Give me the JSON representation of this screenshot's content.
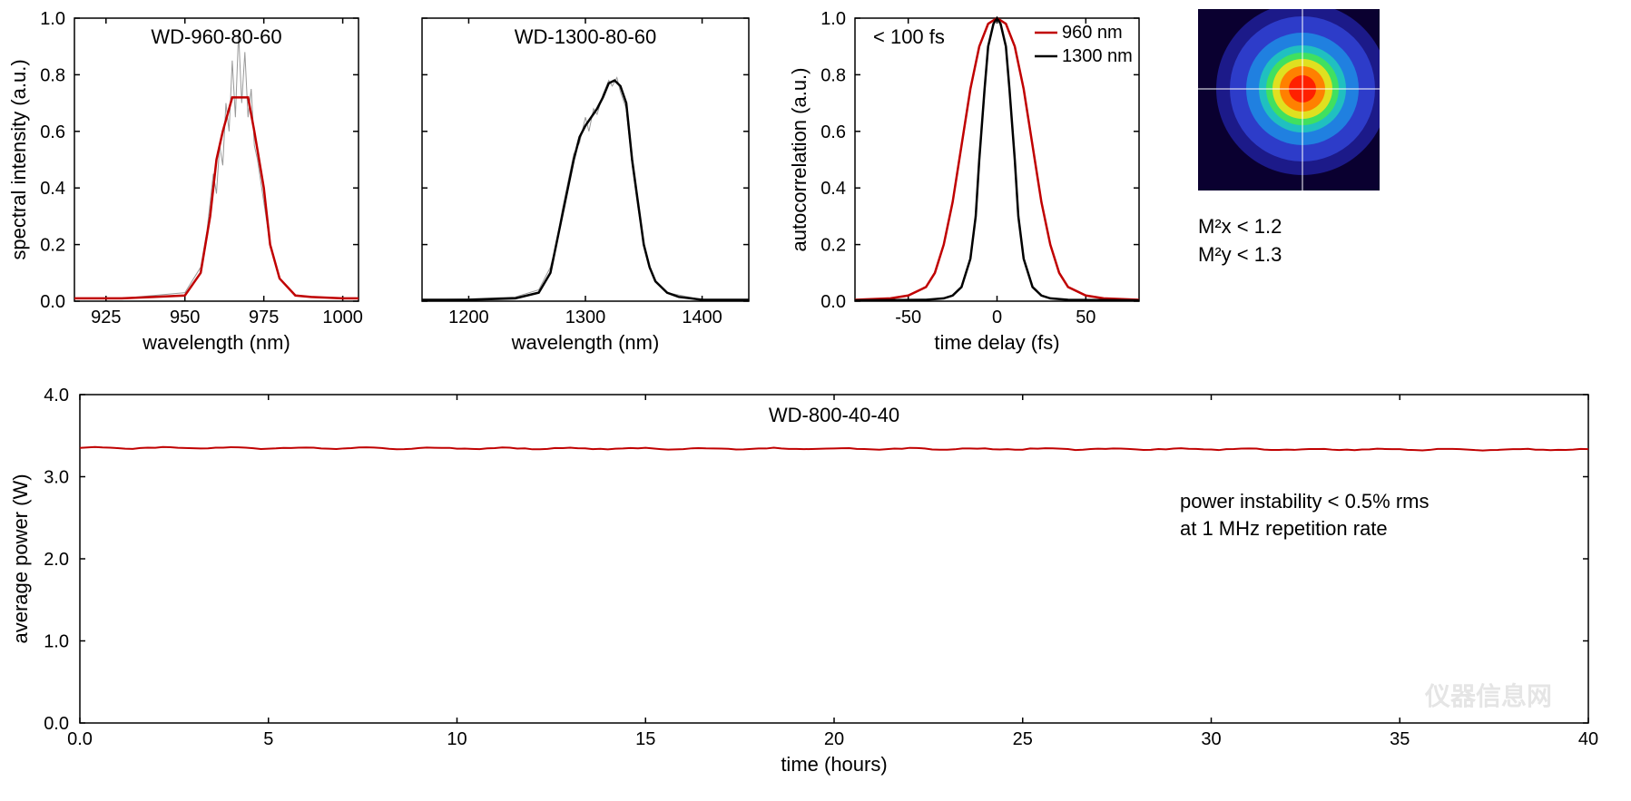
{
  "chart1": {
    "type": "line",
    "title": "WD-960-80-60",
    "xlabel": "wavelength (nm)",
    "ylabel": "spectral intensity (a.u.)",
    "xlim": [
      915,
      1005
    ],
    "ylim": [
      0,
      1.0
    ],
    "xticks": [
      925,
      950,
      975,
      1000
    ],
    "yticks": [
      0.0,
      0.2,
      0.4,
      0.6,
      0.8,
      1.0
    ],
    "line_color": "#c00000",
    "raw_color": "#999999",
    "line_width": 2.5,
    "background": "#ffffff",
    "border_color": "#000000",
    "smooth_data": [
      [
        915,
        0.01
      ],
      [
        930,
        0.01
      ],
      [
        940,
        0.015
      ],
      [
        950,
        0.02
      ],
      [
        955,
        0.1
      ],
      [
        958,
        0.3
      ],
      [
        960,
        0.5
      ],
      [
        962,
        0.6
      ],
      [
        965,
        0.72
      ],
      [
        967,
        0.72
      ],
      [
        970,
        0.72
      ],
      [
        972,
        0.6
      ],
      [
        975,
        0.4
      ],
      [
        977,
        0.2
      ],
      [
        980,
        0.08
      ],
      [
        985,
        0.02
      ],
      [
        990,
        0.015
      ],
      [
        1000,
        0.01
      ],
      [
        1005,
        0.01
      ]
    ],
    "raw_data": [
      [
        915,
        0.01
      ],
      [
        930,
        0.01
      ],
      [
        940,
        0.02
      ],
      [
        950,
        0.03
      ],
      [
        955,
        0.12
      ],
      [
        957,
        0.25
      ],
      [
        959,
        0.45
      ],
      [
        960,
        0.38
      ],
      [
        961,
        0.55
      ],
      [
        962,
        0.48
      ],
      [
        963,
        0.7
      ],
      [
        964,
        0.6
      ],
      [
        965,
        0.85
      ],
      [
        966,
        0.65
      ],
      [
        967,
        0.95
      ],
      [
        968,
        0.7
      ],
      [
        969,
        0.88
      ],
      [
        970,
        0.65
      ],
      [
        971,
        0.75
      ],
      [
        972,
        0.55
      ],
      [
        973,
        0.5
      ],
      [
        975,
        0.35
      ],
      [
        977,
        0.2
      ],
      [
        980,
        0.08
      ],
      [
        985,
        0.02
      ],
      [
        1000,
        0.01
      ]
    ]
  },
  "chart2": {
    "type": "line",
    "title": "WD-1300-80-60",
    "xlabel": "wavelength (nm)",
    "ylim": [
      0,
      1.0
    ],
    "xlim": [
      1160,
      1440
    ],
    "xticks": [
      1200,
      1300,
      1400
    ],
    "yticks": [
      0.0,
      0.2,
      0.4,
      0.6,
      0.8,
      1.0
    ],
    "line_color": "#000000",
    "raw_color": "#999999",
    "line_width": 2.5,
    "background": "#ffffff",
    "border_color": "#000000",
    "smooth_data": [
      [
        1160,
        0.005
      ],
      [
        1200,
        0.005
      ],
      [
        1240,
        0.01
      ],
      [
        1260,
        0.03
      ],
      [
        1270,
        0.1
      ],
      [
        1280,
        0.3
      ],
      [
        1290,
        0.5
      ],
      [
        1295,
        0.58
      ],
      [
        1300,
        0.62
      ],
      [
        1305,
        0.65
      ],
      [
        1310,
        0.68
      ],
      [
        1315,
        0.72
      ],
      [
        1320,
        0.77
      ],
      [
        1325,
        0.78
      ],
      [
        1330,
        0.76
      ],
      [
        1335,
        0.7
      ],
      [
        1340,
        0.5
      ],
      [
        1345,
        0.35
      ],
      [
        1350,
        0.2
      ],
      [
        1355,
        0.12
      ],
      [
        1360,
        0.07
      ],
      [
        1370,
        0.03
      ],
      [
        1380,
        0.015
      ],
      [
        1400,
        0.005
      ],
      [
        1440,
        0.005
      ]
    ],
    "raw_data": [
      [
        1160,
        0.005
      ],
      [
        1200,
        0.008
      ],
      [
        1240,
        0.015
      ],
      [
        1260,
        0.04
      ],
      [
        1270,
        0.12
      ],
      [
        1275,
        0.2
      ],
      [
        1280,
        0.32
      ],
      [
        1285,
        0.42
      ],
      [
        1290,
        0.52
      ],
      [
        1295,
        0.56
      ],
      [
        1300,
        0.65
      ],
      [
        1303,
        0.6
      ],
      [
        1307,
        0.68
      ],
      [
        1310,
        0.66
      ],
      [
        1315,
        0.73
      ],
      [
        1320,
        0.78
      ],
      [
        1323,
        0.76
      ],
      [
        1327,
        0.79
      ],
      [
        1330,
        0.74
      ],
      [
        1335,
        0.68
      ],
      [
        1340,
        0.48
      ],
      [
        1345,
        0.33
      ],
      [
        1350,
        0.2
      ],
      [
        1355,
        0.12
      ],
      [
        1360,
        0.07
      ],
      [
        1370,
        0.03
      ],
      [
        1400,
        0.005
      ]
    ]
  },
  "chart3": {
    "type": "line",
    "title_annotation": "< 100 fs",
    "xlabel": "time delay (fs)",
    "ylabel": "autocorrelation (a.u.)",
    "xlim": [
      -80,
      80
    ],
    "ylim": [
      0,
      1.0
    ],
    "xticks": [
      -50,
      0,
      50
    ],
    "yticks": [
      0.0,
      0.2,
      0.4,
      0.6,
      0.8,
      1.0
    ],
    "legend": [
      {
        "label": "960 nm",
        "color": "#c00000"
      },
      {
        "label": "1300 nm",
        "color": "#000000"
      }
    ],
    "line_width": 2.5,
    "background": "#ffffff",
    "border_color": "#000000",
    "series1": {
      "color": "#c00000",
      "data": [
        [
          -80,
          0.005
        ],
        [
          -60,
          0.01
        ],
        [
          -50,
          0.02
        ],
        [
          -40,
          0.05
        ],
        [
          -35,
          0.1
        ],
        [
          -30,
          0.2
        ],
        [
          -25,
          0.35
        ],
        [
          -20,
          0.55
        ],
        [
          -15,
          0.75
        ],
        [
          -10,
          0.9
        ],
        [
          -5,
          0.98
        ],
        [
          0,
          1.0
        ],
        [
          5,
          0.98
        ],
        [
          10,
          0.9
        ],
        [
          15,
          0.75
        ],
        [
          20,
          0.55
        ],
        [
          25,
          0.35
        ],
        [
          30,
          0.2
        ],
        [
          35,
          0.1
        ],
        [
          40,
          0.05
        ],
        [
          50,
          0.02
        ],
        [
          60,
          0.01
        ],
        [
          80,
          0.005
        ]
      ]
    },
    "series2": {
      "color": "#000000",
      "data": [
        [
          -80,
          0.003
        ],
        [
          -40,
          0.005
        ],
        [
          -30,
          0.01
        ],
        [
          -25,
          0.02
        ],
        [
          -20,
          0.05
        ],
        [
          -15,
          0.15
        ],
        [
          -12,
          0.3
        ],
        [
          -10,
          0.5
        ],
        [
          -7,
          0.75
        ],
        [
          -5,
          0.9
        ],
        [
          -2,
          0.98
        ],
        [
          0,
          1.0
        ],
        [
          2,
          0.98
        ],
        [
          5,
          0.9
        ],
        [
          7,
          0.75
        ],
        [
          10,
          0.5
        ],
        [
          12,
          0.3
        ],
        [
          15,
          0.15
        ],
        [
          20,
          0.05
        ],
        [
          25,
          0.02
        ],
        [
          30,
          0.01
        ],
        [
          40,
          0.005
        ],
        [
          80,
          0.003
        ]
      ]
    }
  },
  "beam": {
    "m2x_label": "M²x < 1.2",
    "m2y_label": "M²y < 1.3",
    "colors": {
      "outer": "#0a0030",
      "ring1": "#2020a0",
      "ring2": "#3040d0",
      "ring3": "#2080e0",
      "ring4": "#20c0c0",
      "ring5": "#40e060",
      "ring6": "#e0e020",
      "ring7": "#ff8000",
      "center": "#ff2000",
      "crosshair": "#ffffff"
    }
  },
  "chart4": {
    "type": "line",
    "title": "WD-800-40-40",
    "xlabel": "time (hours)",
    "ylabel": "average power (W)",
    "xlim": [
      0.0,
      40
    ],
    "ylim": [
      0.0,
      4.0
    ],
    "xticks": [
      0.0,
      5,
      10,
      15,
      20,
      25,
      30,
      35,
      40
    ],
    "yticks": [
      0.0,
      1.0,
      2.0,
      3.0,
      4.0
    ],
    "line_color": "#c00000",
    "line_width": 2,
    "background": "#ffffff",
    "border_color": "#000000",
    "annotation_line1": "power instability < 0.5% rms",
    "annotation_line2": "at 1 MHz repetition rate",
    "watermark": "仪器信息网",
    "data_y": 3.35,
    "data": [
      [
        0,
        3.35
      ],
      [
        40,
        3.33
      ]
    ]
  },
  "layout": {
    "small_chart_width": 380,
    "small_chart_height": 380,
    "bottom_chart_width": 1680,
    "bottom_chart_height": 440,
    "title_fontsize": 22,
    "label_fontsize": 22,
    "tick_fontsize": 20
  }
}
